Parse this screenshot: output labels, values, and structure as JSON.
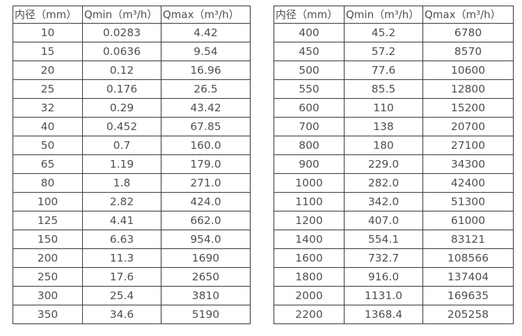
{
  "colors": {
    "text": "#4f4f4f",
    "border": "#333333",
    "background": "#ffffff"
  },
  "tables": [
    {
      "headers": [
        "内径（mm）",
        "Qmin（m³/h）",
        "Qmax（m³/h）"
      ],
      "rows": [
        [
          "10",
          "0.0283",
          "4.42"
        ],
        [
          "15",
          "0.0636",
          "9.54"
        ],
        [
          "20",
          "0.12",
          "16.96"
        ],
        [
          "25",
          "0.176",
          "26.5"
        ],
        [
          "32",
          "0.29",
          "43.42"
        ],
        [
          "40",
          "0.452",
          "67.85"
        ],
        [
          "50",
          "0.7",
          "160.0"
        ],
        [
          "65",
          "1.19",
          "179.0"
        ],
        [
          "80",
          "1.8",
          "271.0"
        ],
        [
          "100",
          "2.82",
          "424.0"
        ],
        [
          "125",
          "4.41",
          "662.0"
        ],
        [
          "150",
          "6.63",
          "954.0"
        ],
        [
          "200",
          "11.3",
          "1690"
        ],
        [
          "250",
          "17.6",
          "2650"
        ],
        [
          "300",
          "25.4",
          "3810"
        ],
        [
          "350",
          "34.6",
          "5190"
        ]
      ]
    },
    {
      "headers": [
        "内径（mm）",
        "Qmin（m³/h）",
        "Qmax（m³/h）"
      ],
      "rows": [
        [
          "400",
          "45.2",
          "6780"
        ],
        [
          "450",
          "57.2",
          "8570"
        ],
        [
          "500",
          "77.6",
          "10600"
        ],
        [
          "550",
          "85.5",
          "12800"
        ],
        [
          "600",
          "110",
          "15200"
        ],
        [
          "700",
          "138",
          "20700"
        ],
        [
          "800",
          "180",
          "27100"
        ],
        [
          "900",
          "229.0",
          "34300"
        ],
        [
          "1000",
          "282.0",
          "42400"
        ],
        [
          "1100",
          "342.0",
          "51300"
        ],
        [
          "1200",
          "407.0",
          "61000"
        ],
        [
          "1400",
          "554.1",
          "83121"
        ],
        [
          "1600",
          "732.7",
          "108566"
        ],
        [
          "1800",
          "916.0",
          "137404"
        ],
        [
          "2000",
          "1131.0",
          "169635"
        ],
        [
          "2200",
          "1368.4",
          "205258"
        ]
      ]
    }
  ]
}
